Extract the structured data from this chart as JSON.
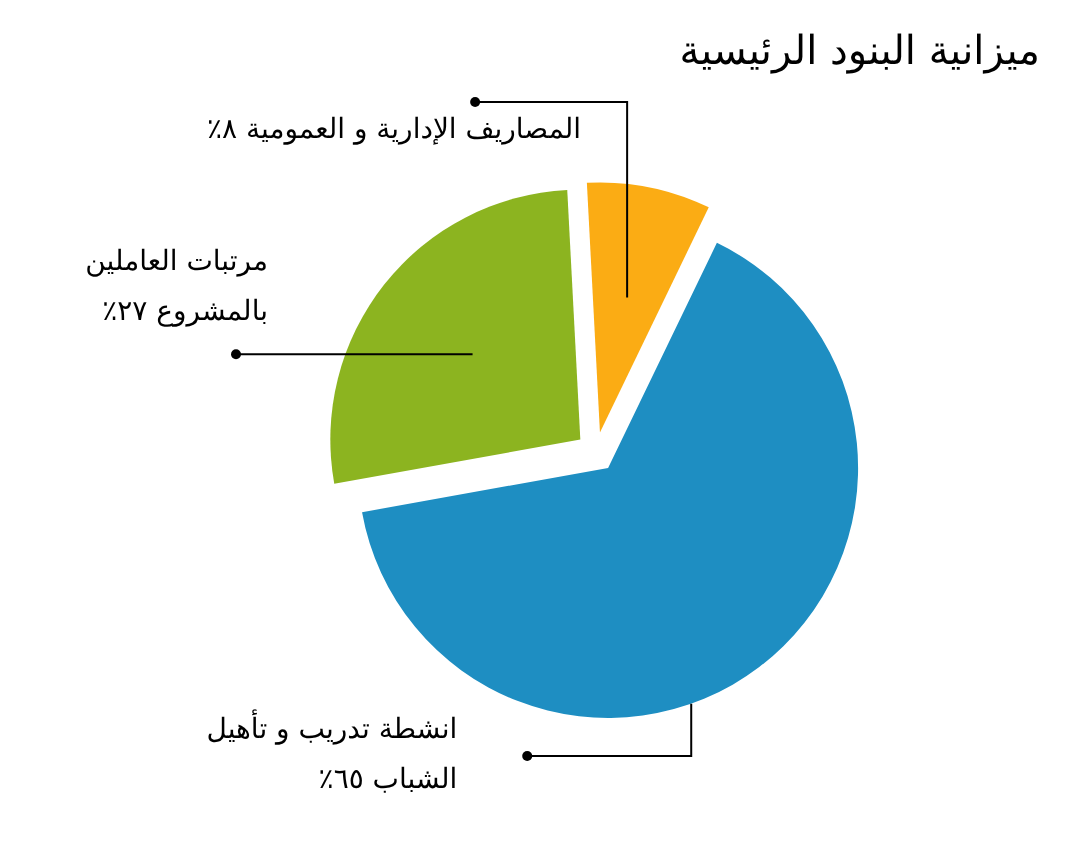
{
  "chart_data": {
    "type": "pie",
    "title": "ميزانية البنود الرئيسية",
    "categories": [
      "المصاريف الإدارية و العمومية",
      "انشطة تدريب و تأهيل الشباب",
      "مرتبات العاملين بالمشروع"
    ],
    "values": [
      8,
      65,
      27
    ],
    "colors": [
      "#fbac14",
      "#1e8ec2",
      "#8cb420"
    ],
    "value_labels": [
      "٨٪",
      "٦٥٪",
      "٢٧٪"
    ]
  }
}
